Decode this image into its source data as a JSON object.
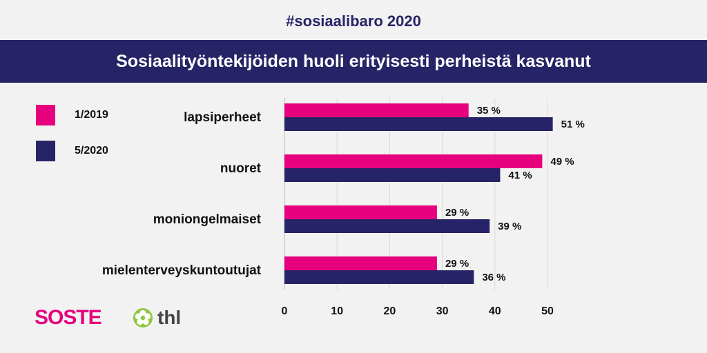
{
  "header": {
    "hashtag": "#sosiaalibaro 2020",
    "title": "Sosiaalityöntekijöiden huoli erityisesti perheistä kasvanut"
  },
  "legend": [
    {
      "label": "1/2019",
      "color": "#e6007e"
    },
    {
      "label": "5/2020",
      "color": "#262466"
    }
  ],
  "chart_data": {
    "type": "bar",
    "orientation": "horizontal",
    "categories": [
      "lapsiperheet",
      "nuoret",
      "moniongelmaiset",
      "mielenterveyskuntoutujat"
    ],
    "series": [
      {
        "name": "1/2019",
        "color": "#e6007e",
        "values": [
          35,
          49,
          29,
          29
        ],
        "labels": [
          "35 %",
          "49 %",
          "29 %",
          "29 %"
        ]
      },
      {
        "name": "5/2020",
        "color": "#262466",
        "values": [
          51,
          41,
          39,
          36
        ],
        "labels": [
          "51 %",
          "41 %",
          "39 %",
          "36 %"
        ]
      }
    ],
    "xlim": [
      0,
      55
    ],
    "xticks": [
      0,
      10,
      20,
      30,
      40,
      50
    ],
    "grid": true,
    "legend_position": "top-left"
  },
  "logos": {
    "soste": "SOSTE",
    "thl": "thl",
    "thl_icon": "flower-icon"
  }
}
